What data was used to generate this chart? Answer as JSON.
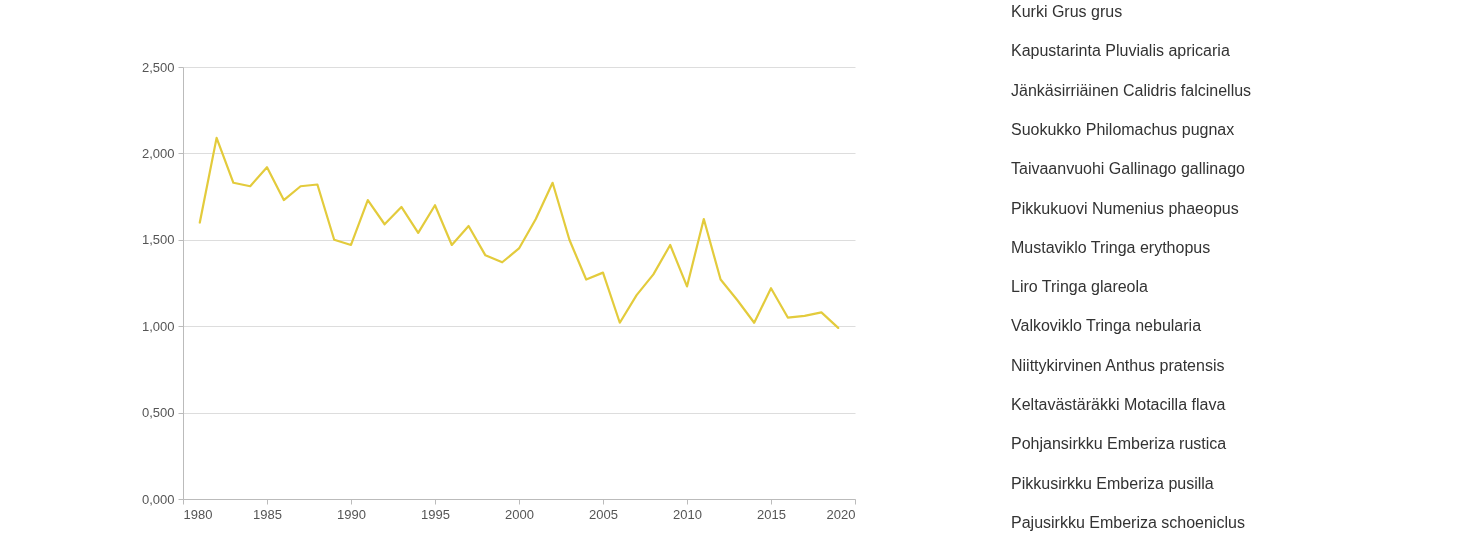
{
  "chart_data": {
    "type": "line",
    "x": [
      1981,
      1982,
      1983,
      1984,
      1985,
      1986,
      1987,
      1988,
      1989,
      1990,
      1991,
      1992,
      1993,
      1994,
      1995,
      1996,
      1997,
      1998,
      1999,
      2000,
      2001,
      2002,
      2003,
      2004,
      2005,
      2006,
      2007,
      2008,
      2009,
      2010,
      2011,
      2012,
      2013,
      2014,
      2015,
      2016,
      2017,
      2018,
      2019
    ],
    "series": [
      {
        "color": "#e3cb3c",
        "values": [
          1.6,
          2.09,
          1.83,
          1.81,
          1.92,
          1.73,
          1.81,
          1.82,
          1.5,
          1.47,
          1.73,
          1.59,
          1.69,
          1.54,
          1.7,
          1.47,
          1.58,
          1.41,
          1.37,
          1.45,
          1.62,
          1.83,
          1.5,
          1.27,
          1.31,
          1.02,
          1.18,
          1.3,
          1.47,
          1.23,
          1.62,
          1.27,
          1.15,
          1.02,
          1.22,
          1.05,
          1.06,
          1.08,
          0.99
        ]
      }
    ],
    "xlim": [
      1980,
      2020
    ],
    "xticks": [
      1980,
      1985,
      1990,
      1995,
      2000,
      2005,
      2010,
      2015,
      2020
    ],
    "ylim": [
      0,
      2.5
    ],
    "yticks": [
      {
        "value": 0,
        "label": "0,000"
      },
      {
        "value": 0.5,
        "label": "0,500"
      },
      {
        "value": 1,
        "label": "1,000"
      },
      {
        "value": 1.5,
        "label": "1,500"
      },
      {
        "value": 2,
        "label": "2,000"
      },
      {
        "value": 2.5,
        "label": "2,500"
      }
    ],
    "grid": "y",
    "marker": "none",
    "line_style": "solid",
    "annotations": [
      "Kurki Grus grus",
      "Kapustarinta Pluvialis apricaria",
      "Jänkäsirriäinen Calidris falcinellus",
      "Suokukko Philomachus pugnax",
      "Taivaanvuohi Gallinago gallinago",
      "Pikkukuovi Numenius phaeopus",
      "Mustaviklo Tringa erythopus",
      "Liro Tringa glareola",
      "Valkoviklo Tringa nebularia",
      "Niittykirvinen Anthus pratensis",
      "Keltavästäräkki Motacilla flava",
      "Pohjansirkku Emberiza rustica",
      "Pikkusirkku Emberiza pusilla",
      "Pajusirkku Emberiza schoeniclus"
    ]
  }
}
